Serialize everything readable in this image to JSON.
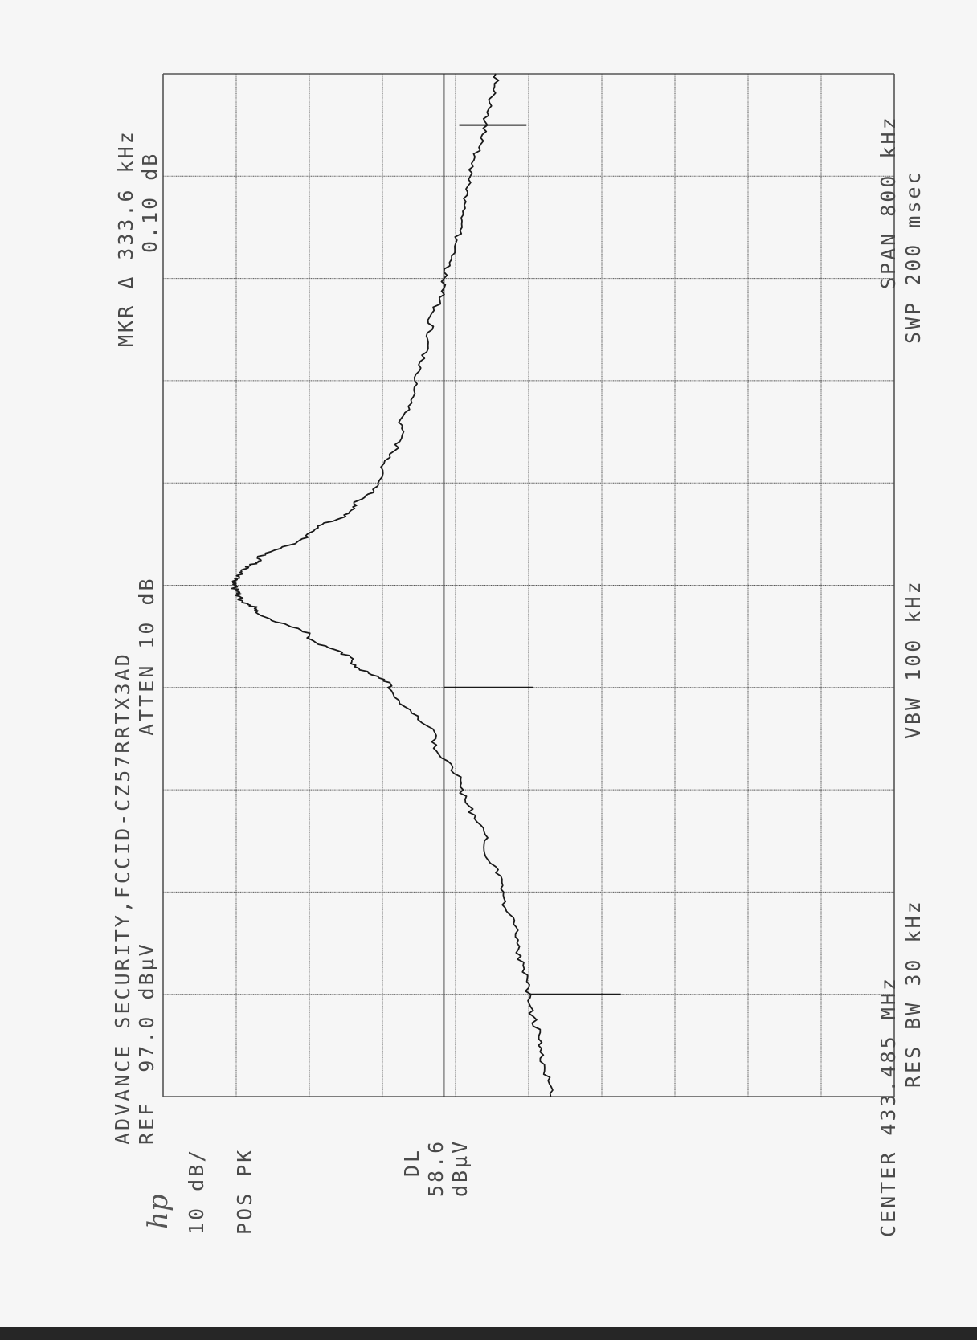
{
  "colors": {
    "paper": "#f6f6f6",
    "ink": "#3a3a3a",
    "grid": "#555555",
    "trace": "#1a1a1a"
  },
  "header": {
    "logo": "hp",
    "title": "ADVANCE SECURITY,FCCID-CZ57RRTX3AD",
    "ref": "REF  97.0 dBµV",
    "atten": "ATTEN 10 dB",
    "marker": "MKR Δ 333.6 kHz",
    "marker_level": "0.10 dB"
  },
  "settings": {
    "scale": "10 dB/",
    "detector": "POS PK",
    "dl_label": "DL",
    "dl_value": "58.6",
    "dl_unit": "dBµV"
  },
  "footer": {
    "center": "CENTER 433.485 MHz",
    "rbw": "RES BW 30 kHz",
    "vbw": "VBW 100 kHz",
    "span": "SPAN 800 kHz",
    "sweep": "SWP 200 msec"
  },
  "chart_data": {
    "type": "line",
    "title": "ADVANCE SECURITY,FCCID-CZ57RRTX3AD",
    "xlabel": "",
    "ylabel": "",
    "x_unit": "MHz",
    "y_unit": "dBµV",
    "xlim": [
      433.085,
      433.885
    ],
    "ylim": [
      -3,
      97
    ],
    "grid": true,
    "display_line": 58.6,
    "series": [
      {
        "values_x": [
          433.085,
          433.125,
          433.165,
          433.205,
          433.245,
          433.285,
          433.325,
          433.365,
          433.405,
          433.425,
          433.445,
          433.465,
          433.475,
          433.485,
          433.495,
          433.505,
          433.525,
          433.545,
          433.565,
          433.605,
          433.645,
          433.685,
          433.725,
          433.765,
          433.805,
          433.845,
          433.885
        ],
        "values_y": [
          44.0,
          45.5,
          47.0,
          48.5,
          50.5,
          53.0,
          56.0,
          60.0,
          66.0,
          71.0,
          77.0,
          84.0,
          86.5,
          87.3,
          86.5,
          84.0,
          77.0,
          71.0,
          67.5,
          64.5,
          62.5,
          60.5,
          58.5,
          56.5,
          55.0,
          53.0,
          51.5
        ]
      }
    ],
    "markers": [
      {
        "x": 433.165,
        "y": 47.0,
        "length": 12.6
      },
      {
        "x": 433.405,
        "y": 58.6,
        "length": 12.2
      },
      {
        "x": 433.845,
        "y": 56.5,
        "length": 9.2
      }
    ]
  }
}
